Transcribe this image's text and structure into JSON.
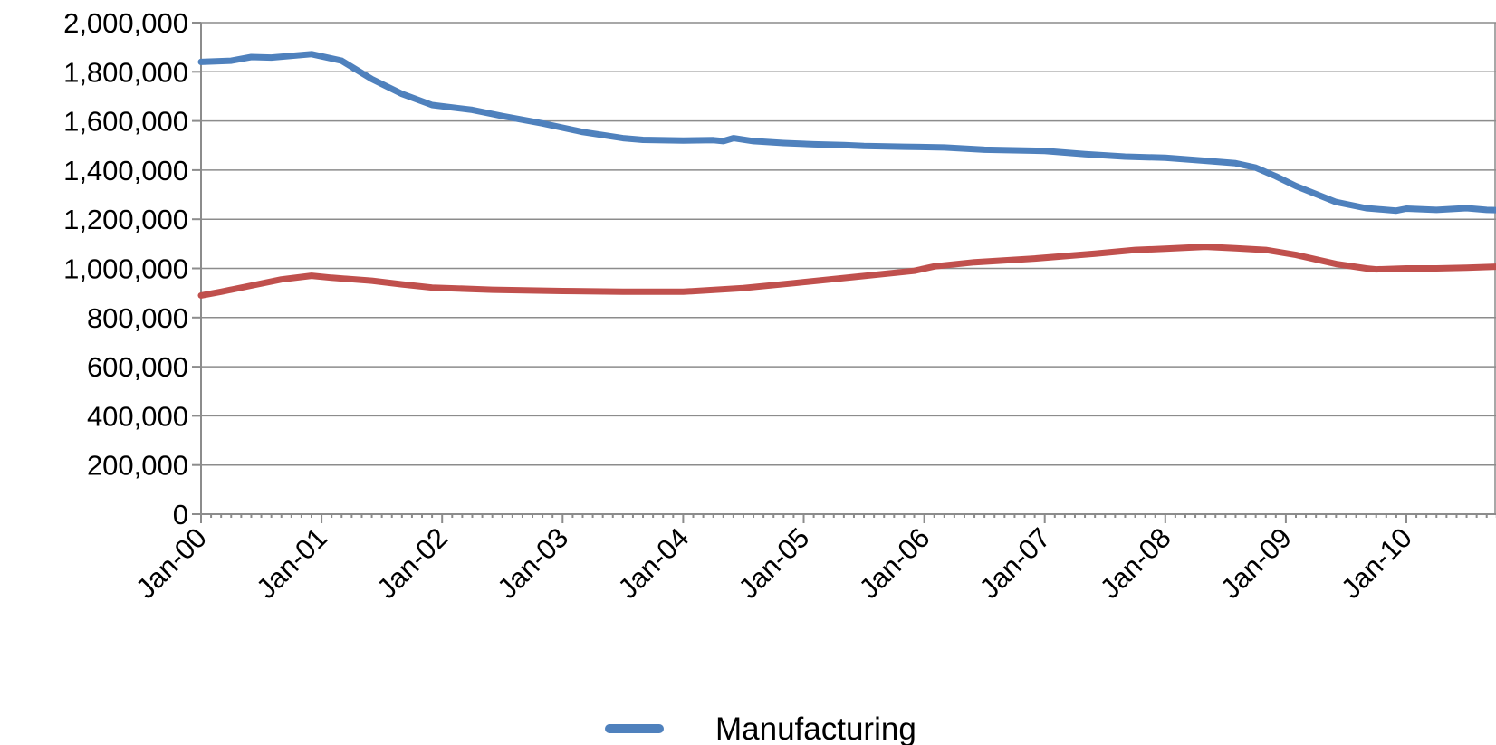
{
  "chart_data": {
    "type": "line",
    "title": "",
    "xlabel": "",
    "ylabel": "",
    "ylim": [
      0,
      2000000
    ],
    "y_ticks": [
      0,
      200000,
      400000,
      600000,
      800000,
      1000000,
      1200000,
      1400000,
      1600000,
      1800000,
      2000000
    ],
    "y_tick_labels": [
      "0",
      "200,000",
      "400,000",
      "600,000",
      "800,000",
      "1,000,000",
      "1,200,000",
      "1,400,000",
      "1,600,000",
      "1,800,000",
      "2,000,000"
    ],
    "x_tick_labels": [
      "Jan-00",
      "Jan-01",
      "Jan-02",
      "Jan-03",
      "Jan-04",
      "Jan-05",
      "Jan-06",
      "Jan-07",
      "Jan-08",
      "Jan-09",
      "Jan-10"
    ],
    "x_start": "Jan-00",
    "x_end": "Nov-10",
    "grid": true,
    "legend_position": "bottom",
    "series": [
      {
        "name": "Manufacturing",
        "color": "#4f81bd",
        "points": [
          [
            "Jan-00",
            1840000
          ],
          [
            "Apr-00",
            1845000
          ],
          [
            "Jun-00",
            1860000
          ],
          [
            "Aug-00",
            1858000
          ],
          [
            "Dec-00",
            1872000
          ],
          [
            "Mar-01",
            1845000
          ],
          [
            "Jun-01",
            1770000
          ],
          [
            "Sep-01",
            1710000
          ],
          [
            "Dec-01",
            1665000
          ],
          [
            "Apr-02",
            1645000
          ],
          [
            "Jul-02",
            1620000
          ],
          [
            "Nov-02",
            1590000
          ],
          [
            "Mar-03",
            1555000
          ],
          [
            "Jul-03",
            1530000
          ],
          [
            "Sep-03",
            1523000
          ],
          [
            "Jan-04",
            1520000
          ],
          [
            "Apr-04",
            1522000
          ],
          [
            "May-04",
            1518000
          ],
          [
            "Jun-04",
            1530000
          ],
          [
            "Aug-04",
            1518000
          ],
          [
            "Nov-04",
            1510000
          ],
          [
            "Feb-05",
            1505000
          ],
          [
            "May-05",
            1502000
          ],
          [
            "Jul-05",
            1498000
          ],
          [
            "Nov-05",
            1495000
          ],
          [
            "Mar-06",
            1492000
          ],
          [
            "Jul-06",
            1483000
          ],
          [
            "Jan-07",
            1478000
          ],
          [
            "May-07",
            1465000
          ],
          [
            "Sep-07",
            1455000
          ],
          [
            "Jan-08",
            1450000
          ],
          [
            "May-08",
            1438000
          ],
          [
            "Aug-08",
            1428000
          ],
          [
            "Oct-08",
            1410000
          ],
          [
            "Dec-08",
            1375000
          ],
          [
            "Feb-09",
            1335000
          ],
          [
            "Jun-09",
            1270000
          ],
          [
            "Sep-09",
            1245000
          ],
          [
            "Dec-09",
            1235000
          ],
          [
            "Jan-10",
            1243000
          ],
          [
            "Apr-10",
            1238000
          ],
          [
            "Jul-10",
            1245000
          ],
          [
            "Sep-10",
            1238000
          ],
          [
            "Nov-10",
            1236000
          ]
        ]
      },
      {
        "color": "#c0504d",
        "points": [
          [
            "Jan-00",
            890000
          ],
          [
            "Mar-00",
            905000
          ],
          [
            "Jun-00",
            930000
          ],
          [
            "Sep-00",
            955000
          ],
          [
            "Dec-00",
            970000
          ],
          [
            "Feb-01",
            962000
          ],
          [
            "Jun-01",
            950000
          ],
          [
            "Sep-01",
            935000
          ],
          [
            "Dec-01",
            922000
          ],
          [
            "Jun-02",
            913000
          ],
          [
            "Jan-03",
            908000
          ],
          [
            "Jul-03",
            905000
          ],
          [
            "Jan-04",
            905000
          ],
          [
            "Jul-04",
            920000
          ],
          [
            "Dec-04",
            940000
          ],
          [
            "Jun-05",
            965000
          ],
          [
            "Dec-05",
            990000
          ],
          [
            "Feb-06",
            1008000
          ],
          [
            "Jun-06",
            1025000
          ],
          [
            "Dec-06",
            1040000
          ],
          [
            "Jun-07",
            1060000
          ],
          [
            "Oct-07",
            1075000
          ],
          [
            "Jan-08",
            1080000
          ],
          [
            "May-08",
            1088000
          ],
          [
            "Aug-08",
            1082000
          ],
          [
            "Nov-08",
            1075000
          ],
          [
            "Feb-09",
            1055000
          ],
          [
            "Jun-09",
            1018000
          ],
          [
            "Sep-09",
            1000000
          ],
          [
            "Oct-09",
            996000
          ],
          [
            "Jan-10",
            1000000
          ],
          [
            "Apr-10",
            1000000
          ],
          [
            "Jul-10",
            1003000
          ],
          [
            "Nov-10",
            1008000
          ]
        ]
      }
    ]
  }
}
